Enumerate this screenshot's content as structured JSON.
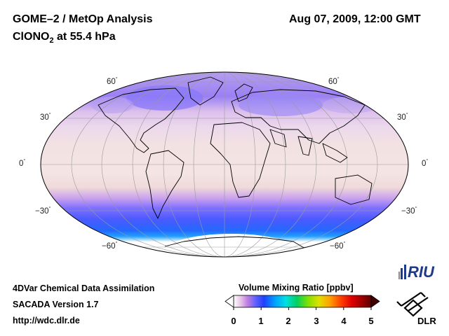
{
  "header": {
    "title": "GOME–2 / MetOp Analysis",
    "datetime": "Aug 07, 2009, 12:00 GMT",
    "species_main": "ClONO",
    "species_sub": "2",
    "species_level": " at 55.4 hPa"
  },
  "map": {
    "projection": "Mollweide",
    "lat_labels": [
      {
        "value": "60",
        "deg": "°"
      },
      {
        "value": "30",
        "deg": "°"
      },
      {
        "value": "0",
        "deg": "°"
      },
      {
        "value": "−30",
        "deg": "°"
      },
      {
        "value": "−60",
        "deg": "°"
      }
    ]
  },
  "footer": {
    "line1": "4DVar Chemical Data Assimilation",
    "line2": "SACADA Version 1.7",
    "line3": "http://wdc.dlr.de"
  },
  "colorbar": {
    "title": "Volume Mixing Ratio [ppbv]",
    "ticks": [
      "0",
      "1",
      "2",
      "3",
      "4",
      "5"
    ],
    "range": [
      0,
      5
    ],
    "colors": [
      "#ffffff",
      "#e8c8e8",
      "#c080e0",
      "#6060ff",
      "#2040ff",
      "#00a0ff",
      "#00e0e0",
      "#00d060",
      "#80e000",
      "#e0e000",
      "#ffa000",
      "#ff4000",
      "#e00000",
      "#a00000",
      "#600000"
    ]
  },
  "logos": {
    "riu": "RIU",
    "dlr": "DLR"
  }
}
